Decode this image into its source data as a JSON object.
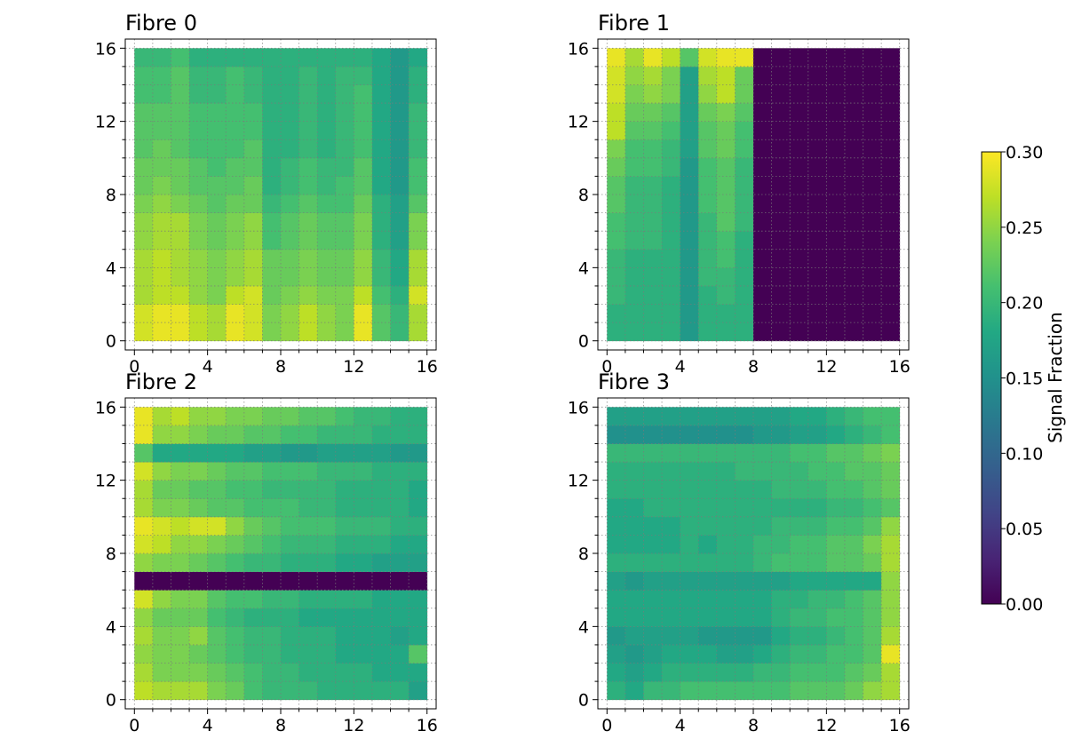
{
  "figure": {
    "colorbar": {
      "label": "Signal Fraction",
      "vmin": 0.0,
      "vmax": 0.3,
      "ticks": [
        0.0,
        0.05,
        0.1,
        0.15,
        0.2,
        0.25,
        0.3
      ],
      "tick_labels": [
        "0.00",
        "0.05",
        "0.10",
        "0.15",
        "0.20",
        "0.25",
        "0.30"
      ],
      "colormap": "viridis"
    }
  },
  "chart_data": [
    {
      "type": "heatmap",
      "title": "Fibre 0",
      "xlim": [
        0,
        16
      ],
      "ylim": [
        0,
        16
      ],
      "xticks": [
        0,
        4,
        8,
        12,
        16
      ],
      "xtick_labels": [
        "0",
        "4",
        "8",
        "12",
        "16"
      ],
      "yticks": [
        0,
        4,
        8,
        12,
        16
      ],
      "ytick_labels": [
        "0",
        "4",
        "8",
        "12",
        "16"
      ],
      "grid": true,
      "z": [
        [
          0.28,
          0.29,
          0.29,
          0.27,
          0.26,
          0.29,
          0.28,
          0.24,
          0.25,
          0.27,
          0.25,
          0.24,
          0.29,
          0.22,
          0.2,
          0.26
        ],
        [
          0.28,
          0.29,
          0.29,
          0.27,
          0.26,
          0.29,
          0.28,
          0.24,
          0.25,
          0.27,
          0.25,
          0.24,
          0.29,
          0.22,
          0.2,
          0.26
        ],
        [
          0.26,
          0.27,
          0.27,
          0.25,
          0.24,
          0.27,
          0.28,
          0.23,
          0.24,
          0.25,
          0.24,
          0.24,
          0.27,
          0.21,
          0.19,
          0.28
        ],
        [
          0.26,
          0.27,
          0.26,
          0.25,
          0.24,
          0.25,
          0.26,
          0.23,
          0.23,
          0.24,
          0.23,
          0.23,
          0.25,
          0.2,
          0.18,
          0.26
        ],
        [
          0.26,
          0.27,
          0.26,
          0.25,
          0.24,
          0.25,
          0.26,
          0.23,
          0.23,
          0.24,
          0.23,
          0.23,
          0.25,
          0.2,
          0.18,
          0.26
        ],
        [
          0.25,
          0.26,
          0.26,
          0.24,
          0.23,
          0.24,
          0.25,
          0.21,
          0.22,
          0.23,
          0.22,
          0.22,
          0.24,
          0.19,
          0.17,
          0.24
        ],
        [
          0.25,
          0.26,
          0.26,
          0.24,
          0.23,
          0.24,
          0.25,
          0.21,
          0.22,
          0.23,
          0.22,
          0.22,
          0.24,
          0.19,
          0.17,
          0.24
        ],
        [
          0.24,
          0.25,
          0.24,
          0.23,
          0.22,
          0.23,
          0.23,
          0.2,
          0.21,
          0.22,
          0.21,
          0.21,
          0.23,
          0.19,
          0.17,
          0.22
        ],
        [
          0.23,
          0.24,
          0.23,
          0.22,
          0.22,
          0.22,
          0.23,
          0.19,
          0.2,
          0.21,
          0.2,
          0.21,
          0.22,
          0.18,
          0.16,
          0.21
        ],
        [
          0.23,
          0.23,
          0.23,
          0.22,
          0.21,
          0.22,
          0.22,
          0.19,
          0.2,
          0.21,
          0.2,
          0.2,
          0.22,
          0.18,
          0.16,
          0.21
        ],
        [
          0.22,
          0.23,
          0.22,
          0.21,
          0.21,
          0.21,
          0.22,
          0.19,
          0.19,
          0.2,
          0.19,
          0.2,
          0.21,
          0.18,
          0.16,
          0.2
        ],
        [
          0.22,
          0.22,
          0.22,
          0.21,
          0.21,
          0.21,
          0.21,
          0.19,
          0.19,
          0.2,
          0.19,
          0.2,
          0.21,
          0.18,
          0.16,
          0.2
        ],
        [
          0.22,
          0.22,
          0.22,
          0.21,
          0.21,
          0.21,
          0.21,
          0.19,
          0.19,
          0.2,
          0.19,
          0.2,
          0.21,
          0.18,
          0.16,
          0.2
        ],
        [
          0.21,
          0.21,
          0.22,
          0.2,
          0.2,
          0.21,
          0.2,
          0.19,
          0.19,
          0.2,
          0.19,
          0.2,
          0.21,
          0.18,
          0.16,
          0.19
        ],
        [
          0.21,
          0.21,
          0.22,
          0.2,
          0.2,
          0.21,
          0.2,
          0.19,
          0.19,
          0.2,
          0.19,
          0.2,
          0.2,
          0.18,
          0.16,
          0.19
        ],
        [
          0.2,
          0.2,
          0.21,
          0.19,
          0.19,
          0.19,
          0.19,
          0.19,
          0.19,
          0.19,
          0.19,
          0.19,
          0.19,
          0.18,
          0.16,
          0.18
        ]
      ]
    },
    {
      "type": "heatmap",
      "title": "Fibre 1",
      "xlim": [
        0,
        16
      ],
      "ylim": [
        0,
        16
      ],
      "xticks": [
        0,
        4,
        8,
        12,
        16
      ],
      "xtick_labels": [
        "0",
        "4",
        "8",
        "12",
        "16"
      ],
      "yticks": [
        0,
        4,
        8,
        12,
        16
      ],
      "ytick_labels": [
        "0",
        "4",
        "8",
        "12",
        "16"
      ],
      "grid": true,
      "z": [
        [
          0.19,
          0.19,
          0.19,
          0.19,
          0.16,
          0.19,
          0.19,
          0.19,
          0,
          0,
          0,
          0,
          0,
          0,
          0,
          0
        ],
        [
          0.19,
          0.19,
          0.19,
          0.19,
          0.16,
          0.19,
          0.19,
          0.19,
          0,
          0,
          0,
          0,
          0,
          0,
          0,
          0
        ],
        [
          0.2,
          0.19,
          0.19,
          0.19,
          0.16,
          0.19,
          0.2,
          0.19,
          0,
          0,
          0,
          0,
          0,
          0,
          0,
          0
        ],
        [
          0.2,
          0.19,
          0.19,
          0.19,
          0.16,
          0.2,
          0.2,
          0.19,
          0,
          0,
          0,
          0,
          0,
          0,
          0,
          0
        ],
        [
          0.2,
          0.19,
          0.19,
          0.19,
          0.16,
          0.2,
          0.21,
          0.19,
          0,
          0,
          0,
          0,
          0,
          0,
          0,
          0
        ],
        [
          0.21,
          0.2,
          0.2,
          0.19,
          0.16,
          0.2,
          0.21,
          0.19,
          0,
          0,
          0,
          0,
          0,
          0,
          0,
          0
        ],
        [
          0.21,
          0.2,
          0.2,
          0.19,
          0.16,
          0.2,
          0.22,
          0.2,
          0,
          0,
          0,
          0,
          0,
          0,
          0,
          0
        ],
        [
          0.22,
          0.2,
          0.2,
          0.19,
          0.16,
          0.21,
          0.22,
          0.2,
          0,
          0,
          0,
          0,
          0,
          0,
          0,
          0
        ],
        [
          0.22,
          0.2,
          0.2,
          0.19,
          0.16,
          0.21,
          0.22,
          0.2,
          0,
          0,
          0,
          0,
          0,
          0,
          0,
          0
        ],
        [
          0.23,
          0.21,
          0.21,
          0.2,
          0.16,
          0.21,
          0.22,
          0.2,
          0,
          0,
          0,
          0,
          0,
          0,
          0,
          0
        ],
        [
          0.24,
          0.21,
          0.21,
          0.2,
          0.17,
          0.22,
          0.23,
          0.21,
          0,
          0,
          0,
          0,
          0,
          0,
          0,
          0
        ],
        [
          0.27,
          0.22,
          0.22,
          0.21,
          0.17,
          0.22,
          0.23,
          0.21,
          0,
          0,
          0,
          0,
          0,
          0,
          0,
          0
        ],
        [
          0.27,
          0.23,
          0.23,
          0.22,
          0.17,
          0.23,
          0.24,
          0.22,
          0,
          0,
          0,
          0,
          0,
          0,
          0,
          0
        ],
        [
          0.28,
          0.24,
          0.25,
          0.24,
          0.17,
          0.25,
          0.27,
          0.23,
          0,
          0,
          0,
          0,
          0,
          0,
          0,
          0
        ],
        [
          0.28,
          0.25,
          0.26,
          0.24,
          0.17,
          0.26,
          0.27,
          0.23,
          0,
          0,
          0,
          0,
          0,
          0,
          0,
          0
        ],
        [
          0.29,
          0.26,
          0.29,
          0.27,
          0.22,
          0.28,
          0.29,
          0.29,
          0,
          0,
          0,
          0,
          0,
          0,
          0,
          0
        ]
      ]
    },
    {
      "type": "heatmap",
      "title": "Fibre 2",
      "xlim": [
        0,
        16
      ],
      "ylim": [
        0,
        16
      ],
      "xticks": [
        0,
        4,
        8,
        12,
        16
      ],
      "xtick_labels": [
        "0",
        "4",
        "8",
        "12",
        "16"
      ],
      "yticks": [
        0,
        4,
        8,
        12,
        16
      ],
      "ytick_labels": [
        "0",
        "4",
        "8",
        "12",
        "16"
      ],
      "grid": true,
      "z": [
        [
          0.27,
          0.26,
          0.26,
          0.26,
          0.24,
          0.23,
          0.21,
          0.2,
          0.2,
          0.2,
          0.19,
          0.19,
          0.19,
          0.19,
          0.19,
          0.17
        ],
        [
          0.26,
          0.24,
          0.24,
          0.24,
          0.23,
          0.22,
          0.21,
          0.2,
          0.2,
          0.19,
          0.19,
          0.19,
          0.19,
          0.18,
          0.18,
          0.18
        ],
        [
          0.25,
          0.24,
          0.24,
          0.23,
          0.22,
          0.21,
          0.2,
          0.2,
          0.19,
          0.19,
          0.19,
          0.18,
          0.18,
          0.18,
          0.18,
          0.22
        ],
        [
          0.26,
          0.24,
          0.24,
          0.25,
          0.22,
          0.21,
          0.2,
          0.2,
          0.19,
          0.19,
          0.19,
          0.18,
          0.18,
          0.18,
          0.17,
          0.18
        ],
        [
          0.25,
          0.23,
          0.23,
          0.23,
          0.21,
          0.2,
          0.19,
          0.19,
          0.19,
          0.18,
          0.18,
          0.18,
          0.18,
          0.18,
          0.18,
          0.18
        ],
        [
          0.28,
          0.25,
          0.24,
          0.24,
          0.22,
          0.21,
          0.21,
          0.2,
          0.2,
          0.19,
          0.19,
          0.19,
          0.19,
          0.18,
          0.18,
          0.18
        ],
        [
          0.0,
          0.0,
          0.0,
          0.0,
          0.0,
          0.0,
          0.0,
          0.0,
          0.0,
          0.0,
          0.0,
          0.0,
          0.0,
          0.0,
          0.0,
          0.0
        ],
        [
          0.25,
          0.24,
          0.24,
          0.23,
          0.22,
          0.21,
          0.2,
          0.2,
          0.19,
          0.19,
          0.19,
          0.18,
          0.18,
          0.17,
          0.17,
          0.17
        ],
        [
          0.28,
          0.27,
          0.25,
          0.25,
          0.24,
          0.23,
          0.22,
          0.21,
          0.2,
          0.2,
          0.2,
          0.19,
          0.19,
          0.19,
          0.18,
          0.18
        ],
        [
          0.29,
          0.28,
          0.27,
          0.28,
          0.28,
          0.25,
          0.23,
          0.22,
          0.21,
          0.21,
          0.21,
          0.2,
          0.2,
          0.2,
          0.19,
          0.19
        ],
        [
          0.26,
          0.24,
          0.24,
          0.23,
          0.22,
          0.22,
          0.21,
          0.21,
          0.21,
          0.2,
          0.2,
          0.19,
          0.19,
          0.19,
          0.19,
          0.18
        ],
        [
          0.26,
          0.23,
          0.23,
          0.22,
          0.22,
          0.21,
          0.21,
          0.2,
          0.2,
          0.2,
          0.2,
          0.19,
          0.19,
          0.19,
          0.19,
          0.18
        ],
        [
          0.28,
          0.25,
          0.24,
          0.24,
          0.23,
          0.22,
          0.22,
          0.21,
          0.21,
          0.21,
          0.2,
          0.2,
          0.2,
          0.19,
          0.19,
          0.19
        ],
        [
          0.22,
          0.18,
          0.18,
          0.18,
          0.18,
          0.18,
          0.17,
          0.17,
          0.16,
          0.16,
          0.17,
          0.17,
          0.17,
          0.17,
          0.16,
          0.16
        ],
        [
          0.29,
          0.25,
          0.25,
          0.24,
          0.23,
          0.23,
          0.22,
          0.22,
          0.21,
          0.21,
          0.2,
          0.2,
          0.2,
          0.19,
          0.19,
          0.19
        ],
        [
          0.29,
          0.26,
          0.27,
          0.25,
          0.25,
          0.24,
          0.24,
          0.23,
          0.23,
          0.22,
          0.22,
          0.21,
          0.2,
          0.2,
          0.19,
          0.19
        ]
      ]
    },
    {
      "type": "heatmap",
      "title": "Fibre 3",
      "xlim": [
        0,
        16
      ],
      "ylim": [
        0,
        16
      ],
      "xticks": [
        0,
        4,
        8,
        12,
        16
      ],
      "xtick_labels": [
        "0",
        "4",
        "8",
        "12",
        "16"
      ],
      "yticks": [
        0,
        4,
        8,
        12,
        16
      ],
      "ytick_labels": [
        "0",
        "4",
        "8",
        "12",
        "16"
      ],
      "grid": true,
      "z": [
        [
          0.19,
          0.18,
          0.2,
          0.2,
          0.21,
          0.21,
          0.21,
          0.21,
          0.21,
          0.21,
          0.22,
          0.22,
          0.22,
          0.23,
          0.25,
          0.26
        ],
        [
          0.18,
          0.17,
          0.18,
          0.19,
          0.19,
          0.19,
          0.19,
          0.19,
          0.2,
          0.2,
          0.21,
          0.21,
          0.21,
          0.22,
          0.23,
          0.26
        ],
        [
          0.17,
          0.16,
          0.17,
          0.18,
          0.18,
          0.18,
          0.17,
          0.17,
          0.18,
          0.19,
          0.2,
          0.2,
          0.21,
          0.21,
          0.22,
          0.29
        ],
        [
          0.16,
          0.17,
          0.17,
          0.17,
          0.17,
          0.16,
          0.16,
          0.16,
          0.16,
          0.18,
          0.19,
          0.19,
          0.2,
          0.21,
          0.22,
          0.26
        ],
        [
          0.18,
          0.18,
          0.18,
          0.18,
          0.18,
          0.18,
          0.18,
          0.18,
          0.18,
          0.19,
          0.2,
          0.2,
          0.21,
          0.21,
          0.22,
          0.25
        ],
        [
          0.18,
          0.18,
          0.18,
          0.18,
          0.18,
          0.18,
          0.18,
          0.18,
          0.18,
          0.19,
          0.19,
          0.2,
          0.2,
          0.21,
          0.22,
          0.25
        ],
        [
          0.17,
          0.16,
          0.17,
          0.17,
          0.17,
          0.17,
          0.17,
          0.17,
          0.17,
          0.17,
          0.18,
          0.18,
          0.18,
          0.18,
          0.18,
          0.25
        ],
        [
          0.19,
          0.19,
          0.19,
          0.19,
          0.19,
          0.19,
          0.19,
          0.19,
          0.2,
          0.21,
          0.21,
          0.21,
          0.22,
          0.22,
          0.23,
          0.26
        ],
        [
          0.18,
          0.18,
          0.18,
          0.18,
          0.19,
          0.18,
          0.19,
          0.19,
          0.2,
          0.2,
          0.21,
          0.21,
          0.22,
          0.22,
          0.24,
          0.26
        ],
        [
          0.18,
          0.18,
          0.18,
          0.18,
          0.19,
          0.19,
          0.19,
          0.19,
          0.19,
          0.2,
          0.2,
          0.2,
          0.21,
          0.21,
          0.22,
          0.25
        ],
        [
          0.18,
          0.18,
          0.19,
          0.19,
          0.19,
          0.19,
          0.19,
          0.19,
          0.19,
          0.19,
          0.19,
          0.19,
          0.2,
          0.2,
          0.21,
          0.22
        ],
        [
          0.19,
          0.19,
          0.19,
          0.19,
          0.19,
          0.19,
          0.19,
          0.19,
          0.19,
          0.2,
          0.2,
          0.2,
          0.21,
          0.21,
          0.22,
          0.23
        ],
        [
          0.19,
          0.19,
          0.19,
          0.19,
          0.19,
          0.19,
          0.19,
          0.2,
          0.2,
          0.2,
          0.2,
          0.21,
          0.21,
          0.22,
          0.22,
          0.23
        ],
        [
          0.2,
          0.2,
          0.2,
          0.2,
          0.2,
          0.2,
          0.2,
          0.2,
          0.2,
          0.2,
          0.21,
          0.21,
          0.22,
          0.22,
          0.23,
          0.24
        ],
        [
          0.15,
          0.15,
          0.15,
          0.15,
          0.15,
          0.15,
          0.15,
          0.15,
          0.16,
          0.16,
          0.17,
          0.17,
          0.18,
          0.19,
          0.2,
          0.21
        ],
        [
          0.17,
          0.17,
          0.17,
          0.17,
          0.17,
          0.17,
          0.17,
          0.17,
          0.17,
          0.17,
          0.18,
          0.18,
          0.19,
          0.2,
          0.21,
          0.21
        ]
      ]
    }
  ]
}
